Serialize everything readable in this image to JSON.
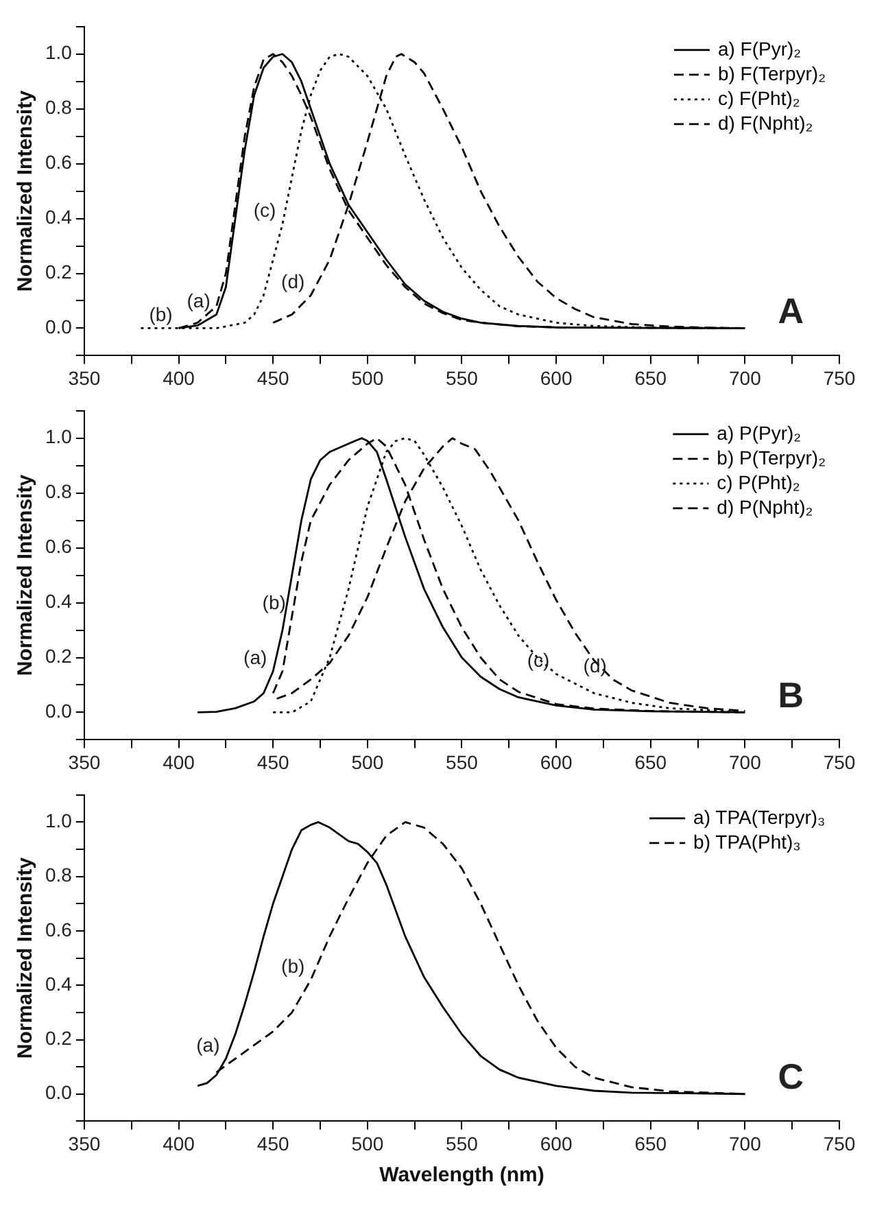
{
  "chart_data": [
    {
      "type": "line",
      "ylabel": "Normalized Intensity",
      "xlim": [
        350,
        750
      ],
      "xticks": [
        350,
        {
          "value": 375,
          "label": null
        },
        400,
        {
          "value": 425,
          "label": null
        },
        450,
        {
          "value": 475,
          "label": null
        },
        500,
        {
          "value": 525,
          "label": null
        },
        550,
        {
          "value": 575,
          "label": null
        },
        600,
        {
          "value": 625,
          "label": null
        },
        650,
        {
          "value": 675,
          "label": null
        },
        700,
        {
          "value": 725,
          "label": null
        },
        750
      ],
      "ylim": [
        -0.1,
        1.1
      ],
      "yticks": [
        {
          "value": -0.1,
          "label": null
        },
        {
          "value": 0,
          "label": "0.0"
        },
        {
          "value": 0.1,
          "label": null
        },
        {
          "value": 0.2,
          "label": "0.2"
        },
        {
          "value": 0.3,
          "label": null
        },
        {
          "value": 0.4,
          "label": "0.4"
        },
        {
          "value": 0.5,
          "label": null
        },
        {
          "value": 0.6,
          "label": "0.6"
        },
        {
          "value": 0.7,
          "label": null
        },
        {
          "value": 0.8,
          "label": "0.8"
        },
        {
          "value": 0.9,
          "label": null
        },
        {
          "value": 1.0,
          "label": "1.0"
        },
        {
          "value": 1.1,
          "label": null
        }
      ],
      "grid": false,
      "legend": "top right",
      "marker": "none",
      "annotations": [
        "A",
        {
          "text": "(b)",
          "x": 400,
          "y": 0.0
        },
        {
          "text": "(a)",
          "x": 420,
          "y": 0.05
        },
        {
          "text": "(c)",
          "x": 455,
          "y": 0.38
        },
        {
          "text": "(d)",
          "x": 470,
          "y": 0.12
        }
      ],
      "series": [
        {
          "name": "a) F(Pyr)₂",
          "color": "#000000",
          "line_style": "solid",
          "x": [
            400,
            410,
            420,
            425,
            430,
            435,
            440,
            445,
            450,
            455,
            460,
            465,
            470,
            475,
            480,
            490,
            500,
            510,
            520,
            530,
            540,
            550,
            560,
            580,
            600,
            650,
            700
          ],
          "values": [
            0.0,
            0.01,
            0.05,
            0.15,
            0.4,
            0.65,
            0.85,
            0.95,
            0.99,
            1.0,
            0.97,
            0.9,
            0.8,
            0.7,
            0.6,
            0.45,
            0.35,
            0.25,
            0.16,
            0.1,
            0.06,
            0.035,
            0.02,
            0.008,
            0.003,
            0.001,
            0.0
          ]
        },
        {
          "name": "b) F(Terpyr)₂",
          "color": "#000000",
          "line_style": "dashed",
          "x": [
            400,
            410,
            420,
            425,
            430,
            435,
            440,
            445,
            450,
            455,
            460,
            465,
            470,
            480,
            490,
            500,
            510,
            520,
            530,
            540,
            550,
            560,
            580,
            600,
            700
          ],
          "values": [
            0.0,
            0.02,
            0.08,
            0.2,
            0.45,
            0.7,
            0.88,
            0.98,
            1.0,
            0.97,
            0.92,
            0.85,
            0.77,
            0.58,
            0.43,
            0.33,
            0.23,
            0.15,
            0.09,
            0.055,
            0.03,
            0.02,
            0.007,
            0.003,
            0.0
          ]
        },
        {
          "name": "c) F(Pht)₂",
          "color": "#000000",
          "line_style": "dotted",
          "x": [
            380,
            400,
            420,
            435,
            440,
            445,
            450,
            455,
            460,
            465,
            470,
            475,
            480,
            485,
            490,
            500,
            510,
            520,
            530,
            540,
            550,
            560,
            570,
            580,
            600,
            620,
            650,
            700
          ],
          "values": [
            0.0,
            0.0,
            0.0,
            0.02,
            0.05,
            0.12,
            0.25,
            0.38,
            0.55,
            0.72,
            0.85,
            0.94,
            0.99,
            1.0,
            0.99,
            0.92,
            0.8,
            0.63,
            0.47,
            0.33,
            0.22,
            0.14,
            0.08,
            0.05,
            0.02,
            0.008,
            0.002,
            0.0
          ]
        },
        {
          "name": "d) F(Npht)₂",
          "color": "#000000",
          "line_style": "dashed",
          "x": [
            450,
            460,
            470,
            480,
            490,
            500,
            505,
            510,
            515,
            518,
            525,
            530,
            540,
            550,
            560,
            570,
            580,
            590,
            600,
            610,
            620,
            640,
            660,
            680,
            700
          ],
          "values": [
            0.02,
            0.05,
            0.12,
            0.25,
            0.45,
            0.68,
            0.8,
            0.92,
            0.99,
            1.0,
            0.97,
            0.93,
            0.8,
            0.66,
            0.5,
            0.37,
            0.26,
            0.17,
            0.11,
            0.07,
            0.04,
            0.015,
            0.006,
            0.002,
            0.0
          ]
        }
      ]
    },
    {
      "type": "line",
      "ylabel": "Normalized Intensity",
      "xlim": [
        350,
        750
      ],
      "xticks": [
        350,
        {
          "value": 375,
          "label": null
        },
        400,
        {
          "value": 425,
          "label": null
        },
        450,
        {
          "value": 475,
          "label": null
        },
        500,
        {
          "value": 525,
          "label": null
        },
        550,
        {
          "value": 575,
          "label": null
        },
        600,
        {
          "value": 625,
          "label": null
        },
        650,
        {
          "value": 675,
          "label": null
        },
        700,
        {
          "value": 725,
          "label": null
        },
        750
      ],
      "ylim": [
        -0.1,
        1.1
      ],
      "yticks": [
        {
          "value": -0.1,
          "label": null
        },
        {
          "value": 0,
          "label": "0.0"
        },
        {
          "value": 0.1,
          "label": null
        },
        {
          "value": 0.2,
          "label": "0.2"
        },
        {
          "value": 0.3,
          "label": null
        },
        {
          "value": 0.4,
          "label": "0.4"
        },
        {
          "value": 0.5,
          "label": null
        },
        {
          "value": 0.6,
          "label": "0.6"
        },
        {
          "value": 0.7,
          "label": null
        },
        {
          "value": 0.8,
          "label": "0.8"
        },
        {
          "value": 0.9,
          "label": null
        },
        {
          "value": 1.0,
          "label": "1.0"
        },
        {
          "value": 1.1,
          "label": null
        }
      ],
      "grid": false,
      "legend": "top right",
      "marker": "none",
      "annotations": [
        "B",
        {
          "text": "(a)",
          "x": 450,
          "y": 0.15
        },
        {
          "text": "(b)",
          "x": 460,
          "y": 0.35
        },
        {
          "text": "(c)",
          "x": 600,
          "y": 0.14
        },
        {
          "text": "(d)",
          "x": 630,
          "y": 0.12
        }
      ],
      "series": [
        {
          "name": "a) P(Pyr)₂",
          "color": "#000000",
          "line_style": "solid",
          "x": [
            410,
            420,
            430,
            440,
            445,
            450,
            455,
            460,
            465,
            470,
            475,
            480,
            490,
            497,
            500,
            505,
            510,
            520,
            530,
            540,
            550,
            560,
            570,
            580,
            600,
            620,
            650,
            700
          ],
          "values": [
            0.0,
            0.002,
            0.015,
            0.04,
            0.07,
            0.15,
            0.3,
            0.5,
            0.7,
            0.85,
            0.92,
            0.95,
            0.98,
            1.0,
            0.99,
            0.95,
            0.85,
            0.64,
            0.45,
            0.31,
            0.2,
            0.13,
            0.085,
            0.055,
            0.025,
            0.01,
            0.004,
            0.0
          ]
        },
        {
          "name": "b) P(Terpyr)₂",
          "color": "#000000",
          "line_style": "dashed",
          "x": [
            450,
            455,
            460,
            465,
            470,
            480,
            490,
            500,
            505,
            510,
            520,
            530,
            540,
            550,
            560,
            570,
            580,
            600,
            620,
            650,
            700
          ],
          "values": [
            0.07,
            0.15,
            0.35,
            0.55,
            0.7,
            0.83,
            0.92,
            0.98,
            1.0,
            0.97,
            0.83,
            0.63,
            0.45,
            0.31,
            0.2,
            0.12,
            0.075,
            0.03,
            0.014,
            0.005,
            0.0
          ]
        },
        {
          "name": "c) P(Pht)₂",
          "color": "#000000",
          "line_style": "dotted",
          "x": [
            450,
            460,
            470,
            480,
            490,
            500,
            505,
            510,
            515,
            520,
            525,
            530,
            540,
            550,
            560,
            570,
            580,
            590,
            600,
            620,
            640,
            660,
            680,
            700
          ],
          "values": [
            0.0,
            0.0,
            0.04,
            0.2,
            0.45,
            0.75,
            0.85,
            0.95,
            0.99,
            1.0,
            0.99,
            0.94,
            0.82,
            0.68,
            0.52,
            0.39,
            0.28,
            0.2,
            0.14,
            0.07,
            0.035,
            0.015,
            0.008,
            0.0
          ]
        },
        {
          "name": "d) P(Npht)₂",
          "color": "#000000",
          "line_style": "dashed",
          "x": [
            452,
            460,
            470,
            480,
            490,
            500,
            510,
            520,
            530,
            540,
            545,
            550,
            557,
            565,
            580,
            590,
            600,
            610,
            620,
            630,
            640,
            660,
            680,
            700
          ],
          "values": [
            0.05,
            0.07,
            0.12,
            0.18,
            0.28,
            0.42,
            0.6,
            0.77,
            0.89,
            0.97,
            1.0,
            0.98,
            0.96,
            0.88,
            0.7,
            0.55,
            0.41,
            0.29,
            0.19,
            0.12,
            0.08,
            0.035,
            0.015,
            0.005
          ]
        }
      ]
    },
    {
      "type": "line",
      "xlabel": "Wavelength (nm)",
      "ylabel": "Normalized Intensity",
      "xlim": [
        350,
        750
      ],
      "xticks": [
        350,
        {
          "value": 375,
          "label": null
        },
        400,
        {
          "value": 425,
          "label": null
        },
        450,
        {
          "value": 475,
          "label": null
        },
        500,
        {
          "value": 525,
          "label": null
        },
        550,
        {
          "value": 575,
          "label": null
        },
        600,
        {
          "value": 625,
          "label": null
        },
        650,
        {
          "value": 675,
          "label": null
        },
        700,
        {
          "value": 725,
          "label": null
        },
        750
      ],
      "ylim": [
        -0.1,
        1.1
      ],
      "yticks": [
        {
          "value": -0.1,
          "label": null
        },
        {
          "value": 0,
          "label": "0.0"
        },
        {
          "value": 0.1,
          "label": null
        },
        {
          "value": 0.2,
          "label": "0.2"
        },
        {
          "value": 0.3,
          "label": null
        },
        {
          "value": 0.4,
          "label": "0.4"
        },
        {
          "value": 0.5,
          "label": null
        },
        {
          "value": 0.6,
          "label": "0.6"
        },
        {
          "value": 0.7,
          "label": null
        },
        {
          "value": 0.8,
          "label": "0.8"
        },
        {
          "value": 0.9,
          "label": null
        },
        {
          "value": 1.0,
          "label": "1.0"
        },
        {
          "value": 1.1,
          "label": null
        }
      ],
      "grid": false,
      "legend": "top right",
      "marker": "none",
      "annotations": [
        "C",
        {
          "text": "(a)",
          "x": 425,
          "y": 0.13
        },
        {
          "text": "(b)",
          "x": 470,
          "y": 0.42
        }
      ],
      "series": [
        {
          "name": "a) TPA(Terpyr)₃",
          "color": "#000000",
          "line_style": "solid",
          "x": [
            410,
            415,
            420,
            425,
            430,
            435,
            440,
            445,
            450,
            455,
            460,
            465,
            470,
            474,
            480,
            490,
            495,
            500,
            505,
            510,
            520,
            530,
            540,
            550,
            560,
            570,
            580,
            600,
            620,
            640,
            670,
            700
          ],
          "values": [
            0.03,
            0.04,
            0.07,
            0.13,
            0.22,
            0.33,
            0.45,
            0.58,
            0.7,
            0.8,
            0.9,
            0.97,
            0.99,
            1.0,
            0.98,
            0.93,
            0.92,
            0.89,
            0.85,
            0.77,
            0.58,
            0.43,
            0.32,
            0.22,
            0.14,
            0.09,
            0.06,
            0.03,
            0.012,
            0.005,
            0.003,
            0.0
          ]
        },
        {
          "name": "b) TPA(Pht)₃",
          "color": "#000000",
          "line_style": "dashed",
          "x": [
            420,
            430,
            440,
            450,
            460,
            470,
            480,
            490,
            500,
            510,
            520,
            530,
            540,
            550,
            560,
            570,
            580,
            590,
            600,
            610,
            620,
            640,
            660,
            700
          ],
          "values": [
            0.08,
            0.13,
            0.18,
            0.23,
            0.3,
            0.42,
            0.58,
            0.72,
            0.85,
            0.95,
            1.0,
            0.98,
            0.92,
            0.83,
            0.7,
            0.55,
            0.4,
            0.27,
            0.17,
            0.1,
            0.06,
            0.025,
            0.01,
            0.0
          ]
        }
      ]
    }
  ]
}
